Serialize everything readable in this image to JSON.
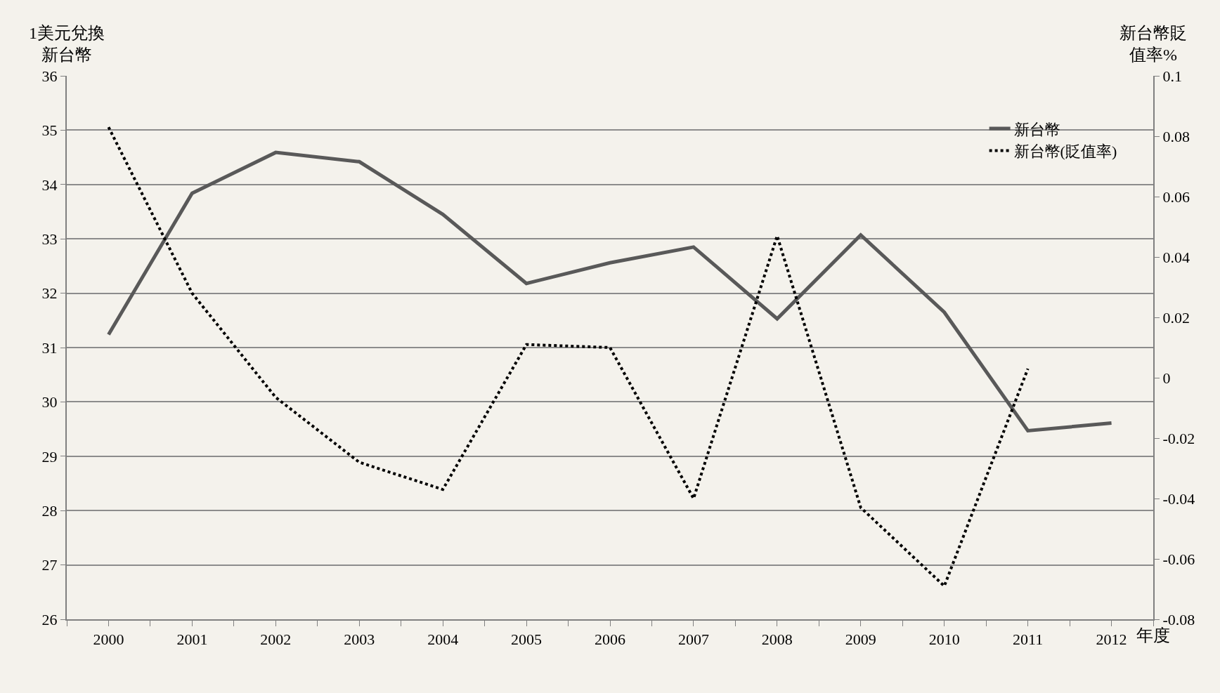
{
  "chart_data": {
    "type": "line",
    "categories": [
      "2000",
      "2001",
      "2002",
      "2003",
      "2004",
      "2005",
      "2006",
      "2007",
      "2008",
      "2009",
      "2010",
      "2011",
      "2012"
    ],
    "series": [
      {
        "name": "新台幣",
        "color": "#595959",
        "line_style": "solid",
        "values": [
          31.24,
          33.84,
          34.59,
          34.42,
          33.45,
          32.18,
          32.56,
          32.85,
          31.53,
          33.07,
          31.65,
          29.47,
          29.61
        ]
      },
      {
        "name": "新台幣(貶值率)",
        "color": "#000000",
        "line_style": "dotted",
        "axis": "y2",
        "values": [
          0.083,
          0.028,
          -0.0065,
          -0.028,
          -0.037,
          0.011,
          0.01,
          -0.04,
          0.047,
          -0.043,
          -0.069,
          0.003,
          null
        ]
      }
    ],
    "xlabel": "年度",
    "ylabel": "1美元兌換新台幣",
    "y2label": "新台幣貶值率%",
    "ylim": [
      26,
      36
    ],
    "yticks": [
      26,
      27,
      28,
      29,
      30,
      31,
      32,
      33,
      34,
      35,
      36
    ],
    "y2lim": [
      -0.08,
      0.1
    ],
    "y2ticks": [
      -0.08,
      -0.06,
      -0.04,
      -0.02,
      0,
      0.02,
      0.04,
      0.06,
      0.08,
      0.1
    ],
    "grid": "y",
    "legend": "top right",
    "marker": "none"
  }
}
